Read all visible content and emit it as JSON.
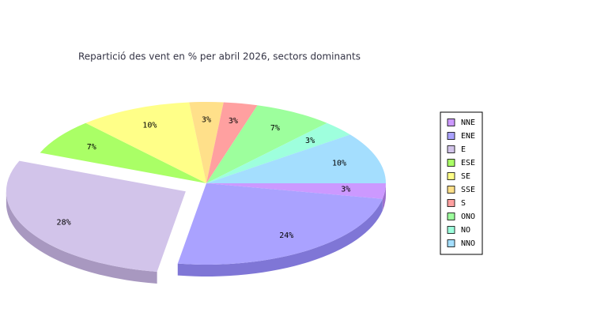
{
  "chart_data": {
    "type": "pie",
    "title": "Repartició des vent en % per abril 2026, sectors dominants",
    "categories": [
      "NNE",
      "ENE",
      "E",
      "ESE",
      "SE",
      "SSE",
      "S",
      "ONO",
      "NO",
      "NNO"
    ],
    "values": [
      3,
      24,
      28,
      7,
      10,
      3,
      3,
      7,
      3,
      10
    ],
    "value_labels": [
      "3%",
      "24%",
      "28%",
      "7%",
      "10%",
      "3%",
      "3%",
      "7%",
      "3%",
      "10%"
    ],
    "colors": [
      "#cc99ff",
      "#aaa2ff",
      "#d2c4ea",
      "#aaff66",
      "#ffff88",
      "#ffe08a",
      "#ffa0a0",
      "#9dff9d",
      "#9effdd",
      "#a4defe"
    ],
    "side_colors": [
      "#9c70cc",
      "#7f76d6",
      "#a898c0",
      "#77cc33",
      "#cccc55",
      "#ccb055",
      "#cc7070",
      "#6ccc6c",
      "#6cccaa",
      "#70aacc"
    ],
    "exploded": "E",
    "legend": "right"
  }
}
